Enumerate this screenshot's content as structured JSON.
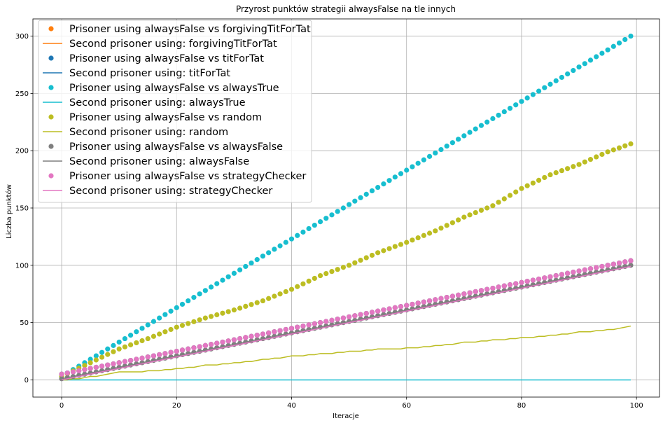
{
  "chart_data": {
    "type": "scatter",
    "title": "Przyrost punktów strategii alwaysFalse na tle innych",
    "xlabel": "Iteracje",
    "ylabel": "Liczba punktów",
    "xlim": [
      -5,
      104
    ],
    "ylim": [
      -15,
      315
    ],
    "xticks": [
      0,
      20,
      40,
      60,
      80,
      100
    ],
    "yticks": [
      0,
      50,
      100,
      150,
      200,
      250,
      300
    ],
    "grid": true,
    "legend_position": "top-left",
    "x": {
      "start": 0,
      "end": 99,
      "step": 1
    },
    "legend": [
      {
        "label": "Prisoner using alwaysFalse vs forgivingTitForTat",
        "kind": "marker",
        "color": "#ff7f0e"
      },
      {
        "label": "Second prisoner using: forgivingTitForTat",
        "kind": "line",
        "color": "#ff7f0e"
      },
      {
        "label": "Prisoner using alwaysFalse vs titForTat",
        "kind": "marker",
        "color": "#1f77b4"
      },
      {
        "label": "Second prisoner using: titForTat",
        "kind": "line",
        "color": "#1f77b4"
      },
      {
        "label": "Prisoner using alwaysFalse vs alwaysTrue",
        "kind": "marker",
        "color": "#17becf"
      },
      {
        "label": "Second prisoner using: alwaysTrue",
        "kind": "line",
        "color": "#17becf"
      },
      {
        "label": "Prisoner using alwaysFalse vs random",
        "kind": "marker",
        "color": "#bcbd22"
      },
      {
        "label": "Second prisoner using: random",
        "kind": "line",
        "color": "#bcbd22"
      },
      {
        "label": "Prisoner using alwaysFalse vs alwaysFalse",
        "kind": "marker",
        "color": "#7f7f7f"
      },
      {
        "label": "Second prisoner using: alwaysFalse",
        "kind": "line",
        "color": "#7f7f7f"
      },
      {
        "label": "Prisoner using alwaysFalse vs strategyChecker",
        "kind": "marker",
        "color": "#e377c2"
      },
      {
        "label": "Second prisoner using: strategyChecker",
        "kind": "line",
        "color": "#e377c2"
      }
    ],
    "series": [
      {
        "name": "Prisoner using alwaysFalse vs forgivingTitForTat",
        "kind": "scatter",
        "color": "#ff7f0e",
        "model": {
          "intercept": 5,
          "slope": 1.0
        }
      },
      {
        "name": "Second prisoner using: forgivingTitForTat",
        "kind": "line",
        "color": "#ff7f0e",
        "model": {
          "intercept": 0,
          "slope": 1.0
        }
      },
      {
        "name": "Prisoner using alwaysFalse vs titForTat",
        "kind": "scatter",
        "color": "#1f77b4",
        "model": {
          "intercept": 5,
          "slope": 1.0
        }
      },
      {
        "name": "Second prisoner using: titForTat",
        "kind": "line",
        "color": "#1f77b4",
        "model": {
          "intercept": 0,
          "slope": 1.0
        }
      },
      {
        "name": "Prisoner using alwaysFalse vs alwaysTrue",
        "kind": "scatter",
        "color": "#17becf",
        "model": {
          "intercept": 3,
          "slope": 3.0
        }
      },
      {
        "name": "Second prisoner using: alwaysTrue",
        "kind": "line",
        "color": "#17becf",
        "model": {
          "intercept": 0,
          "slope": 0
        }
      },
      {
        "name": "Prisoner using alwaysFalse vs random",
        "kind": "scatter",
        "color": "#bcbd22",
        "points": [
          [
            0,
            3
          ],
          [
            5,
            15
          ],
          [
            10,
            27
          ],
          [
            15,
            36
          ],
          [
            20,
            46
          ],
          [
            25,
            54
          ],
          [
            30,
            61
          ],
          [
            35,
            69
          ],
          [
            40,
            79
          ],
          [
            45,
            91
          ],
          [
            50,
            100
          ],
          [
            55,
            111
          ],
          [
            60,
            120
          ],
          [
            65,
            130
          ],
          [
            70,
            142
          ],
          [
            75,
            152
          ],
          [
            80,
            167
          ],
          [
            85,
            179
          ],
          [
            90,
            188
          ],
          [
            95,
            199
          ],
          [
            99,
            206
          ]
        ]
      },
      {
        "name": "Second prisoner using: random",
        "kind": "line",
        "color": "#bcbd22",
        "points": [
          [
            0,
            0
          ],
          [
            5,
            3
          ],
          [
            10,
            7
          ],
          [
            15,
            8
          ],
          [
            20,
            10
          ],
          [
            25,
            13
          ],
          [
            30,
            15
          ],
          [
            35,
            18
          ],
          [
            40,
            21
          ],
          [
            45,
            23
          ],
          [
            50,
            25
          ],
          [
            55,
            27
          ],
          [
            60,
            28
          ],
          [
            65,
            30
          ],
          [
            70,
            33
          ],
          [
            75,
            35
          ],
          [
            80,
            37
          ],
          [
            85,
            39
          ],
          [
            90,
            42
          ],
          [
            95,
            44
          ],
          [
            99,
            47
          ]
        ]
      },
      {
        "name": "Prisoner using alwaysFalse vs alwaysFalse",
        "kind": "scatter",
        "color": "#7f7f7f",
        "model": {
          "intercept": 1,
          "slope": 1.0
        }
      },
      {
        "name": "Second prisoner using: alwaysFalse",
        "kind": "line",
        "color": "#7f7f7f",
        "model": {
          "intercept": 1,
          "slope": 1.0
        }
      },
      {
        "name": "Prisoner using alwaysFalse vs strategyChecker",
        "kind": "scatter",
        "color": "#e377c2",
        "model": {
          "intercept": 5,
          "slope": 1.0
        }
      },
      {
        "name": "Second prisoner using: strategyChecker",
        "kind": "line",
        "color": "#e377c2",
        "model": {
          "intercept": 0,
          "slope": 1.0
        }
      }
    ]
  }
}
